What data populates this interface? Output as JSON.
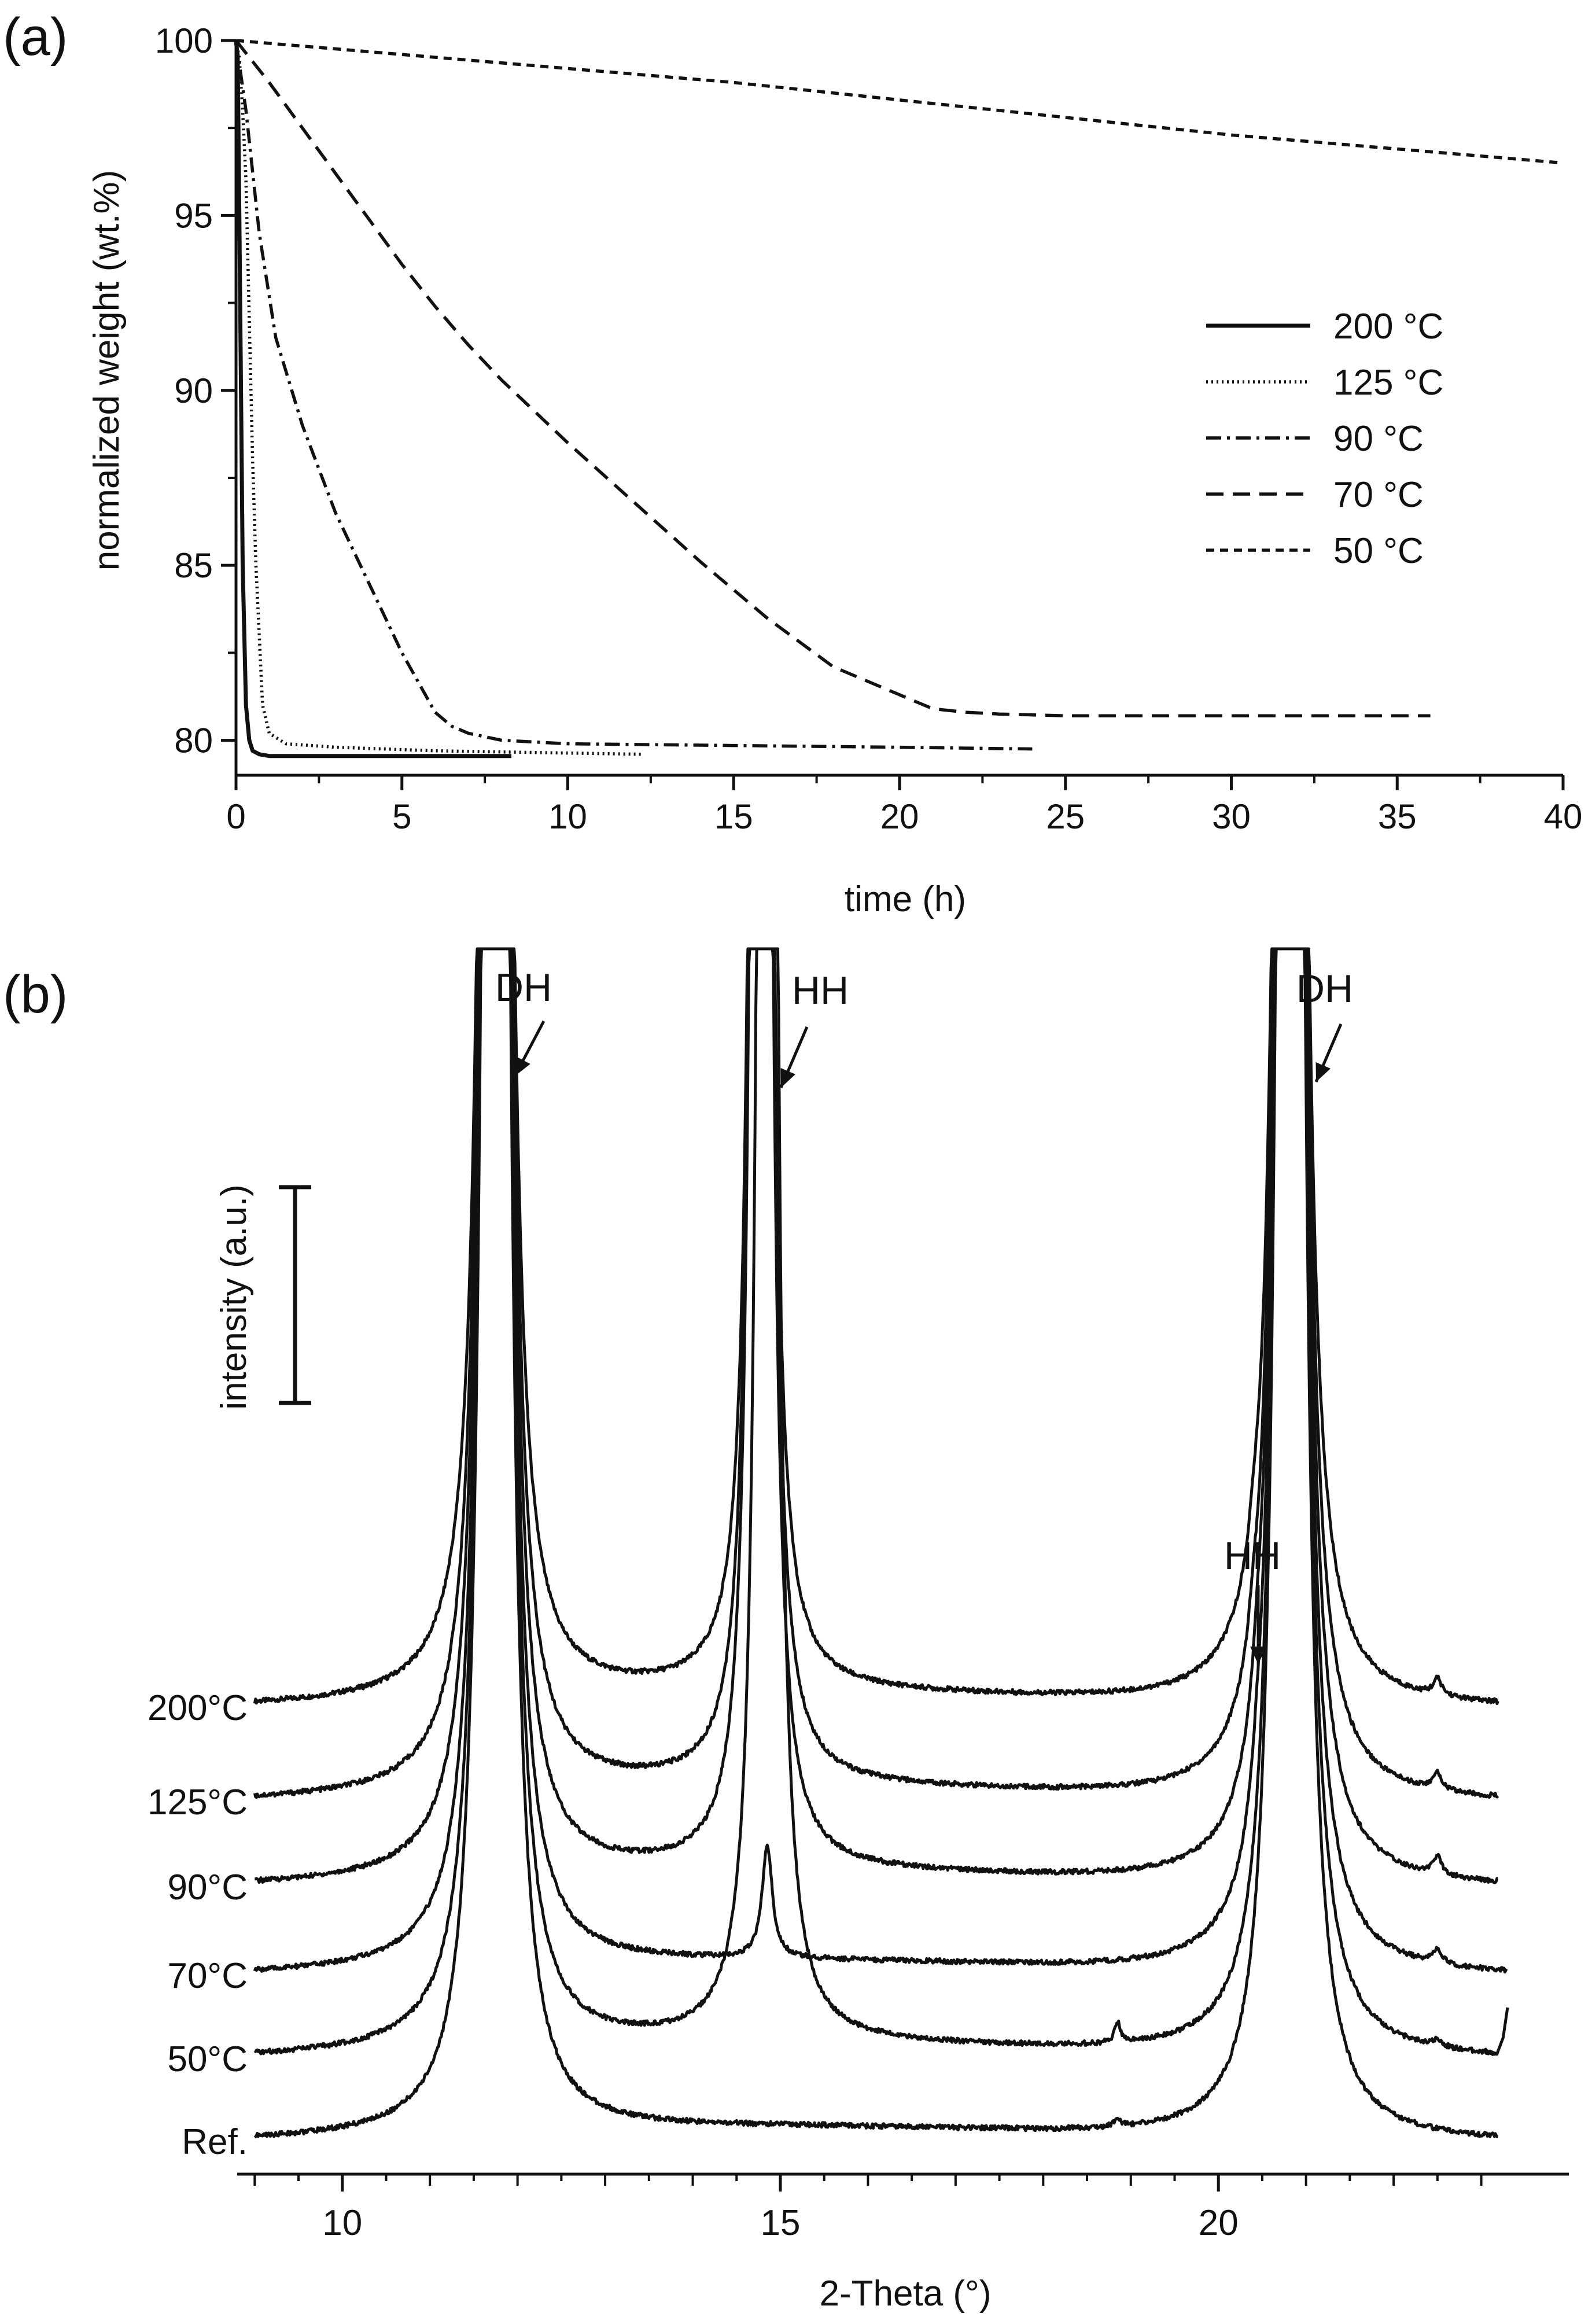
{
  "chart_data": [
    {
      "panel_label": "(a)",
      "type": "line",
      "xlabel": "time (h)",
      "ylabel": "normalized weight (wt.%)",
      "xlim": [
        0,
        40
      ],
      "ylim": [
        79,
        100
      ],
      "xticks": [
        0,
        5,
        10,
        15,
        20,
        25,
        30,
        35,
        40
      ],
      "yticks": [
        80,
        85,
        90,
        95,
        100
      ],
      "legend_position": "upper-right",
      "series": [
        {
          "name": "200 °C",
          "style": "solid",
          "x": [
            0,
            0.05,
            0.1,
            0.2,
            0.3,
            0.4,
            0.5,
            0.7,
            1,
            2,
            4,
            6,
            8.3
          ],
          "y": [
            100,
            99.5,
            95,
            85,
            81,
            80,
            79.7,
            79.6,
            79.55,
            79.55,
            79.55,
            79.55,
            79.55
          ]
        },
        {
          "name": "125 °C",
          "style": "dotted",
          "x": [
            0,
            0.1,
            0.2,
            0.3,
            0.4,
            0.5,
            0.6,
            0.8,
            1,
            1.5,
            3,
            6,
            9,
            12.2
          ],
          "y": [
            100,
            99.5,
            98,
            96,
            92,
            88,
            85,
            81,
            80.2,
            79.9,
            79.8,
            79.7,
            79.65,
            79.6
          ]
        },
        {
          "name": "90 °C",
          "style": "dashdot",
          "x": [
            0,
            0.3,
            0.7,
            1.2,
            2,
            3,
            4,
            5,
            6,
            6.5,
            7,
            8,
            10,
            15,
            20,
            24
          ],
          "y": [
            100,
            98,
            94.5,
            91.5,
            89,
            86.5,
            84.5,
            82.5,
            80.8,
            80.4,
            80.2,
            80.0,
            79.9,
            79.85,
            79.8,
            79.75
          ]
        },
        {
          "name": "70 °C",
          "style": "dashed",
          "x": [
            0,
            1,
            2,
            3,
            4,
            5,
            6,
            7,
            8,
            10,
            12,
            14,
            16,
            18,
            20,
            21,
            22,
            23,
            25,
            30,
            36
          ],
          "y": [
            100,
            98.8,
            97.5,
            96.2,
            94.9,
            93.6,
            92.4,
            91.3,
            90.3,
            88.5,
            86.8,
            85.1,
            83.5,
            82.1,
            81.3,
            80.9,
            80.8,
            80.75,
            80.7,
            80.7,
            80.7
          ]
        },
        {
          "name": "50 °C",
          "style": "shortdash",
          "x": [
            0,
            5,
            10,
            15,
            20,
            25,
            30,
            35,
            40
          ],
          "y": [
            100,
            99.6,
            99.2,
            98.8,
            98.3,
            97.8,
            97.3,
            96.9,
            96.5
          ]
        }
      ]
    },
    {
      "panel_label": "(b)",
      "type": "line",
      "xlabel": "2-Theta (°)",
      "ylabel": "intensity (a.u.)",
      "xlim": [
        8.8,
        24.0
      ],
      "xticks": [
        10,
        15,
        20
      ],
      "scale_bar": "intensity (a.u.)",
      "traces": [
        {
          "name": "200°C",
          "offset": 5,
          "peaks": [
            {
              "pos": 11.75,
              "h": 99,
              "w": 0.07
            },
            {
              "pos": 14.78,
              "h": 99,
              "w": 0.05
            },
            {
              "pos": 20.4,
              "h": 0.22,
              "w": 0.06
            },
            {
              "pos": 20.82,
              "h": 99,
              "w": 0.07
            },
            {
              "pos": 22.5,
              "h": 0.2,
              "w": 0.06
            }
          ]
        },
        {
          "name": "125°C",
          "offset": 4,
          "peaks": [
            {
              "pos": 11.75,
              "h": 99,
              "w": 0.07
            },
            {
              "pos": 14.78,
              "h": 99,
              "w": 0.05
            },
            {
              "pos": 20.4,
              "h": 0.3,
              "w": 0.06
            },
            {
              "pos": 20.82,
              "h": 99,
              "w": 0.07
            },
            {
              "pos": 22.5,
              "h": 0.2,
              "w": 0.06
            }
          ]
        },
        {
          "name": "90°C",
          "offset": 3,
          "peaks": [
            {
              "pos": 11.75,
              "h": 99,
              "w": 0.07
            },
            {
              "pos": 14.78,
              "h": 99,
              "w": 0.05
            },
            {
              "pos": 20.45,
              "h": 0.38,
              "w": 0.07
            },
            {
              "pos": 20.82,
              "h": 99,
              "w": 0.07
            },
            {
              "pos": 22.5,
              "h": 0.22,
              "w": 0.06
            }
          ]
        },
        {
          "name": "70°C",
          "offset": 2,
          "peaks": [
            {
              "pos": 11.75,
              "h": 99,
              "w": 0.07
            },
            {
              "pos": 14.85,
              "h": 1.4,
              "w": 0.07
            },
            {
              "pos": 20.45,
              "h": 0.3,
              "w": 0.07
            },
            {
              "pos": 20.82,
              "h": 99,
              "w": 0.07
            },
            {
              "pos": 22.5,
              "h": 0.18,
              "w": 0.06
            }
          ]
        },
        {
          "name": "50°C",
          "offset": 1,
          "peaks": [
            {
              "pos": 11.75,
              "h": 99,
              "w": 0.07
            },
            {
              "pos": 14.85,
              "h": 99,
              "w": 0.05
            },
            {
              "pos": 18.85,
              "h": 0.25,
              "w": 0.04
            },
            {
              "pos": 20.82,
              "h": 99,
              "w": 0.07
            },
            {
              "pos": 22.5,
              "h": 0.08,
              "w": 0.06
            }
          ]
        },
        {
          "name": "Ref.",
          "offset": 0,
          "peaks": [
            {
              "pos": 11.75,
              "h": 99,
              "w": 0.07
            },
            {
              "pos": 18.85,
              "h": 0.1,
              "w": 0.04
            },
            {
              "pos": 20.82,
              "h": 99,
              "w": 0.07
            }
          ]
        }
      ],
      "annotations": [
        {
          "text": "DH",
          "at_x": 11.85
        },
        {
          "text": "HH",
          "at_x": 14.85
        },
        {
          "text": "DH",
          "at_x": 20.95
        },
        {
          "text": "HH",
          "at_x": 20.4
        }
      ]
    }
  ]
}
